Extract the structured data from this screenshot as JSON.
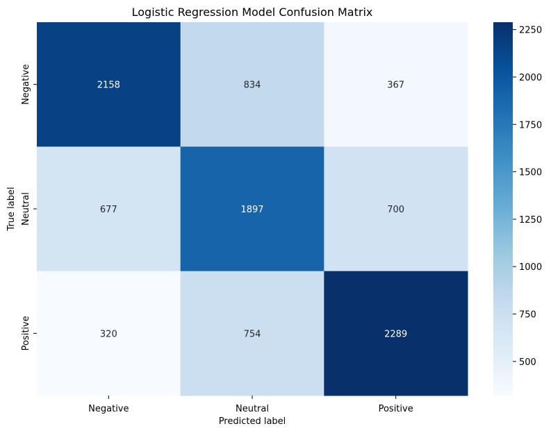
{
  "chart_data": {
    "type": "heatmap",
    "title": "Logistic Regression Model Confusion Matrix",
    "xlabel": "Predicted label",
    "ylabel": "True label",
    "x_categories": [
      "Negative",
      "Neutral",
      "Positive"
    ],
    "y_categories": [
      "Negative",
      "Neutral",
      "Positive"
    ],
    "values": [
      [
        2158,
        834,
        367
      ],
      [
        677,
        1897,
        700
      ],
      [
        320,
        754,
        2289
      ]
    ],
    "colormap": "Blues",
    "colorbar": {
      "range": [
        320,
        2289
      ],
      "ticks": [
        500,
        750,
        1000,
        1250,
        1500,
        1750,
        2000,
        2250
      ]
    }
  }
}
